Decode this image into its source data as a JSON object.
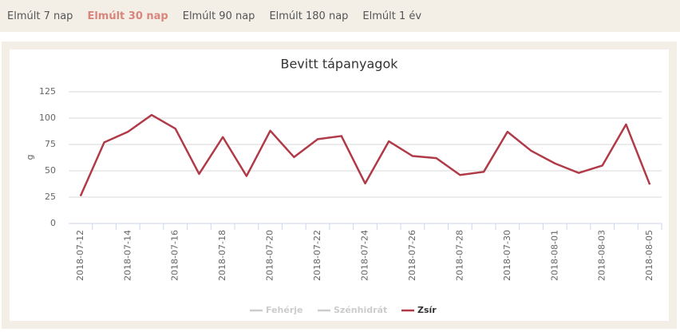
{
  "tabs": {
    "items": [
      "Elmúlt 7 nap",
      "Elmúlt 30 nap",
      "Elmúlt 90 nap",
      "Elmúlt 180 nap",
      "Elmúlt 1 év"
    ],
    "active": 1
  },
  "chart_data": {
    "type": "line",
    "title": "Bevitt tápanyagok",
    "y_label": "g",
    "categories": [
      "2018-07-12",
      null,
      "2018-07-14",
      null,
      "2018-07-16",
      null,
      "2018-07-18",
      null,
      "2018-07-20",
      null,
      "2018-07-22",
      null,
      "2018-07-24",
      null,
      "2018-07-26",
      null,
      "2018-07-28",
      null,
      "2018-07-30",
      null,
      "2018-08-01",
      null,
      "2018-08-03",
      null,
      "2018-08-05"
    ],
    "series": [
      {
        "name": "Fehérje",
        "color": "#cccccc",
        "visible": false,
        "values": [
          null,
          null,
          null,
          null,
          null,
          null,
          null,
          null,
          null,
          null,
          null,
          null,
          null,
          null,
          null,
          null,
          null,
          null,
          null,
          null,
          null,
          null,
          null,
          null,
          null
        ]
      },
      {
        "name": "Szénhidrát",
        "color": "#cccccc",
        "visible": false,
        "values": [
          null,
          null,
          null,
          null,
          null,
          null,
          null,
          null,
          null,
          null,
          null,
          null,
          null,
          null,
          null,
          null,
          null,
          null,
          null,
          null,
          null,
          null,
          null,
          null,
          null
        ]
      },
      {
        "name": "Zsír",
        "color": "#b03a48",
        "visible": true,
        "values": [
          26,
          77,
          87,
          103,
          90,
          47,
          82,
          45,
          88,
          63,
          80,
          83,
          38,
          78,
          64,
          62,
          46,
          49,
          87,
          69,
          57,
          48,
          55,
          94,
          37
        ]
      }
    ],
    "ylim": [
      0,
      125
    ],
    "yticks": [
      0,
      25,
      50,
      75,
      100,
      125
    ],
    "grid": true
  }
}
